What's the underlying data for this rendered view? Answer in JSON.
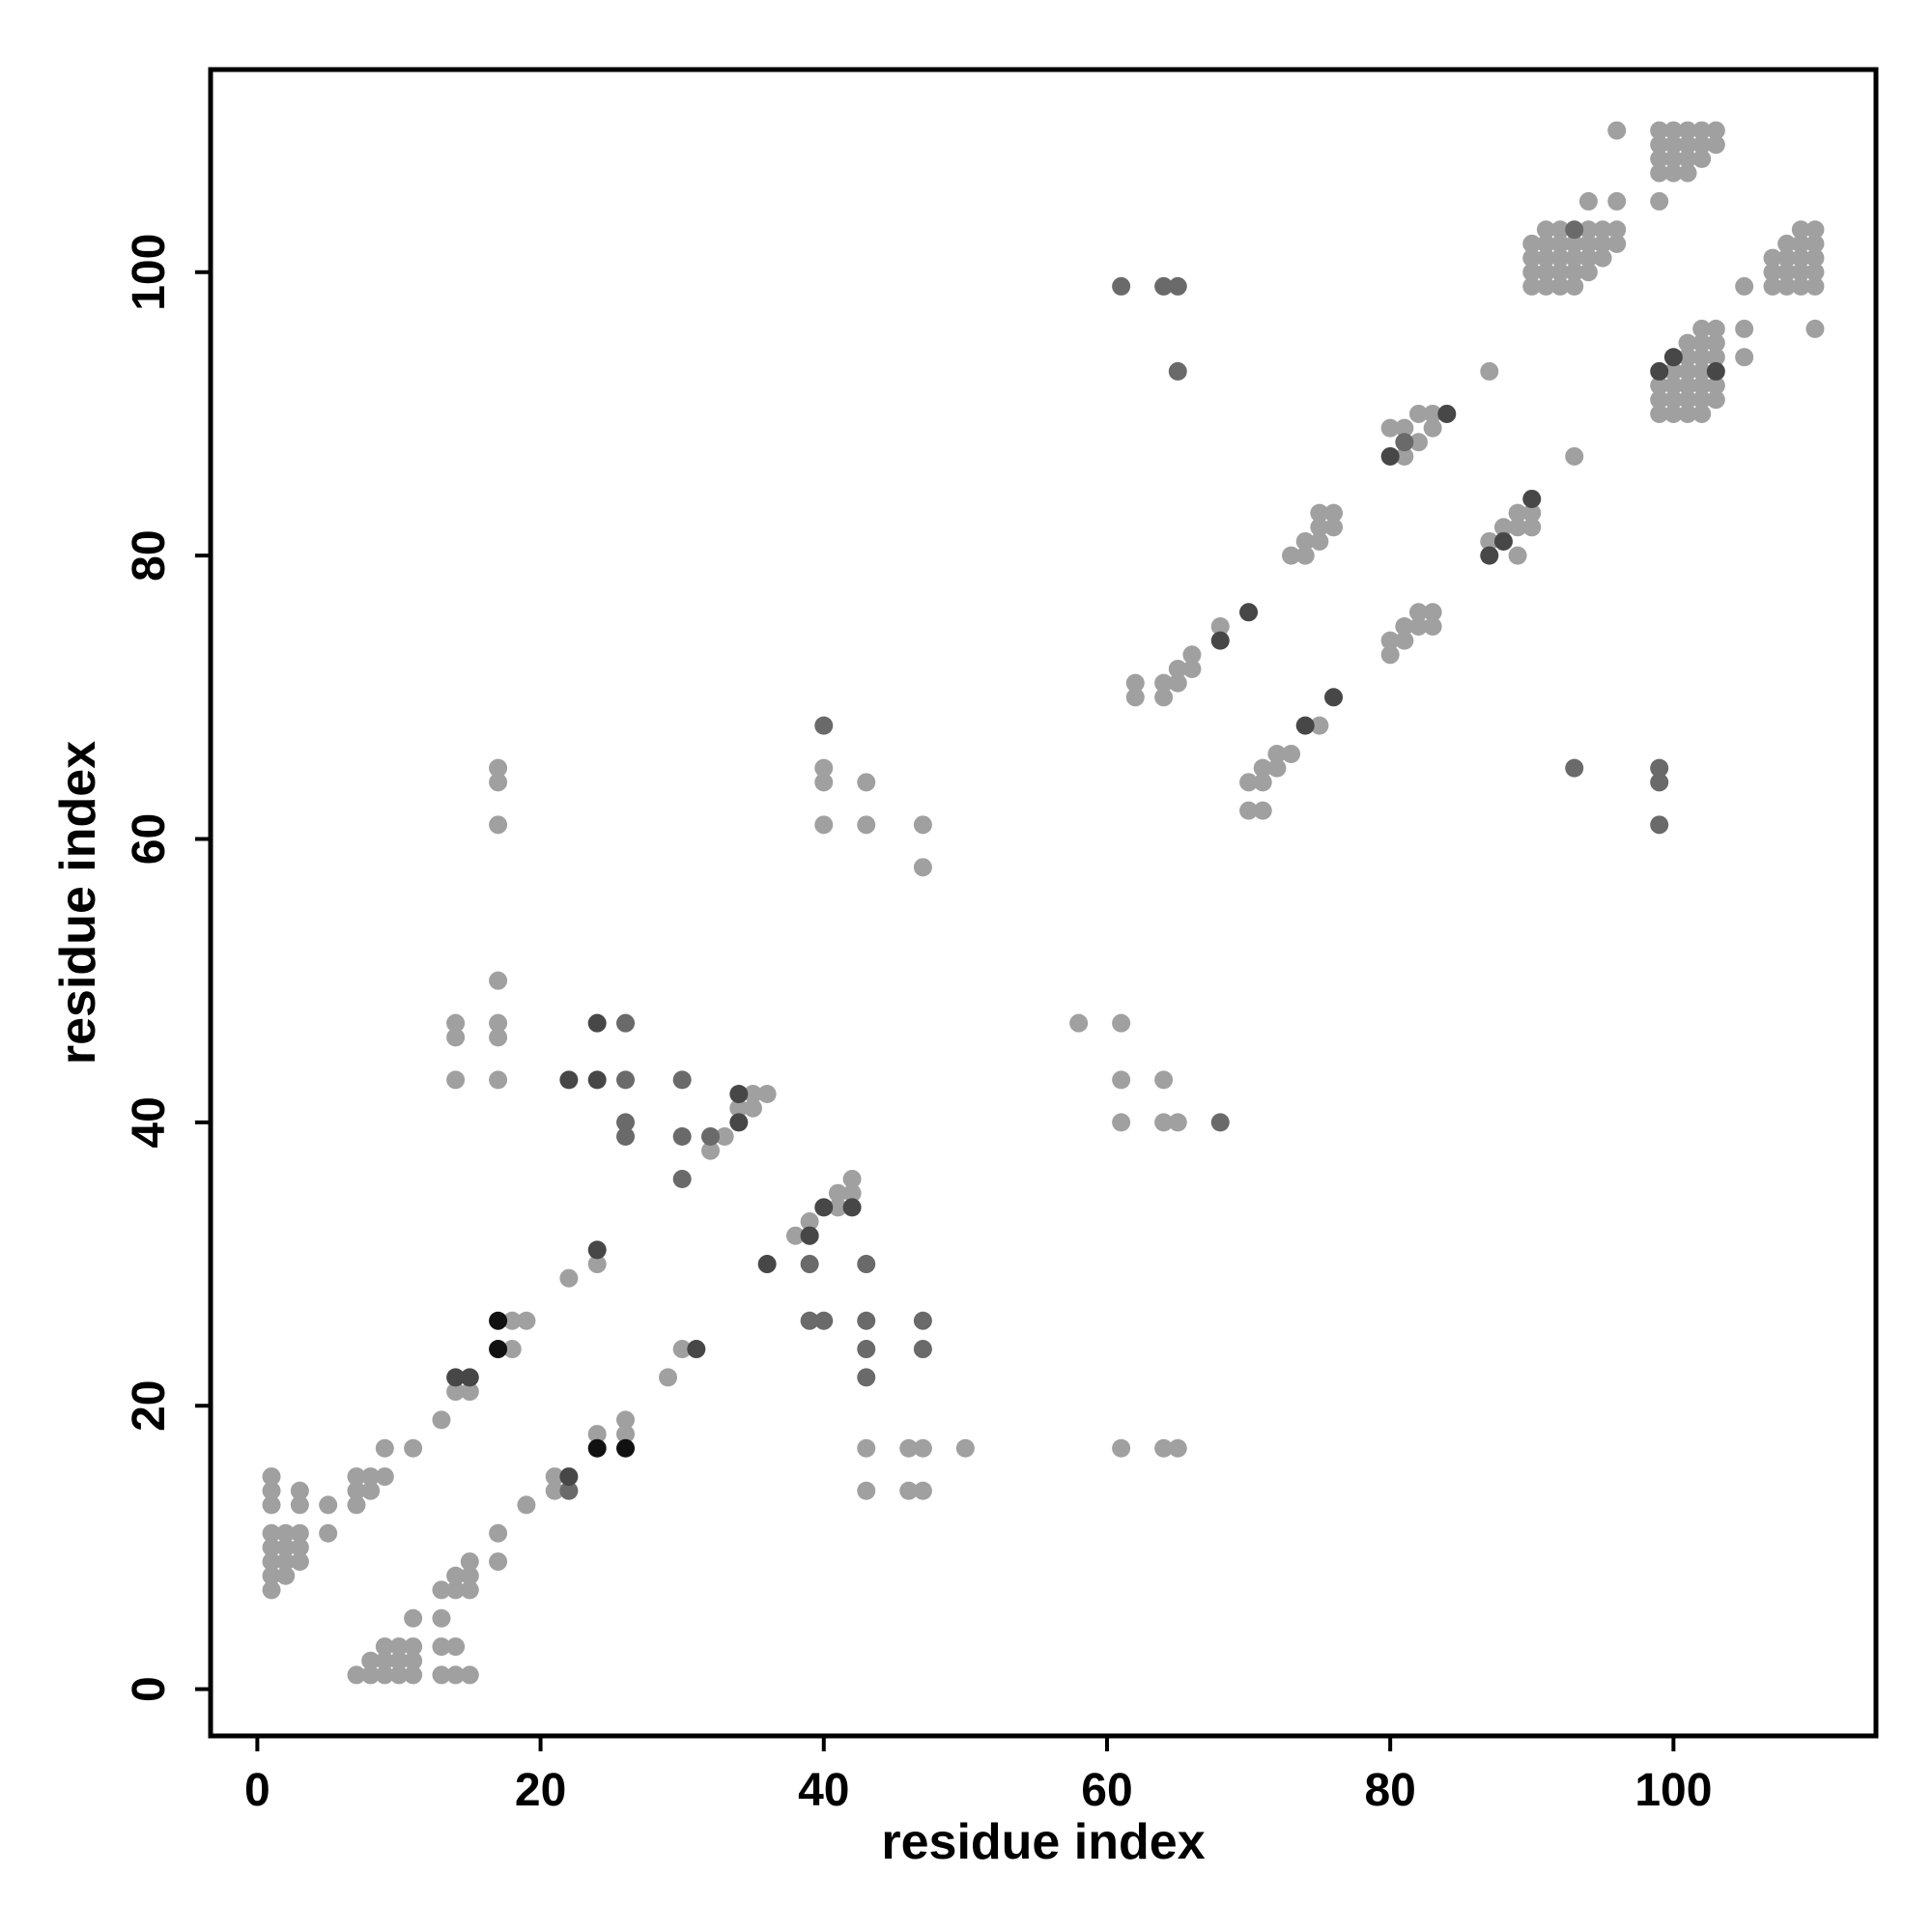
{
  "chart_data": {
    "type": "scatter",
    "title": "",
    "xlabel": "residue index",
    "ylabel": "residue index",
    "xlim": [
      -3.3,
      114.3
    ],
    "ylim": [
      -3.3,
      114.3
    ],
    "xticks": [
      0,
      20,
      40,
      60,
      80,
      100
    ],
    "yticks": [
      0,
      20,
      40,
      60,
      80,
      100
    ],
    "grid": false,
    "legend": "none",
    "colors": {
      "light": "#a0a0a0",
      "medium": "#6a6a6a",
      "dark": "#474747",
      "black": "#111111"
    },
    "series": [
      {
        "shade": "light",
        "points": [
          [
            1,
            7
          ],
          [
            1,
            8
          ],
          [
            1,
            9
          ],
          [
            1,
            10
          ],
          [
            1,
            11
          ],
          [
            1,
            13
          ],
          [
            1,
            14
          ],
          [
            1,
            15
          ],
          [
            2,
            8
          ],
          [
            2,
            9
          ],
          [
            2,
            10
          ],
          [
            2,
            11
          ],
          [
            3,
            9
          ],
          [
            3,
            10
          ],
          [
            3,
            11
          ],
          [
            3,
            13
          ],
          [
            3,
            14
          ],
          [
            5,
            11
          ],
          [
            5,
            13
          ],
          [
            7,
            1
          ],
          [
            7,
            13
          ],
          [
            7,
            14
          ],
          [
            7,
            15
          ],
          [
            8,
            1
          ],
          [
            8,
            2
          ],
          [
            8,
            14
          ],
          [
            8,
            15
          ],
          [
            9,
            1
          ],
          [
            9,
            2
          ],
          [
            9,
            3
          ],
          [
            9,
            15
          ],
          [
            9,
            17
          ],
          [
            10,
            1
          ],
          [
            10,
            2
          ],
          [
            10,
            3
          ],
          [
            11,
            1
          ],
          [
            11,
            2
          ],
          [
            11,
            3
          ],
          [
            11,
            5
          ],
          [
            11,
            17
          ],
          [
            13,
            1
          ],
          [
            13,
            3
          ],
          [
            13,
            5
          ],
          [
            13,
            7
          ],
          [
            13,
            19
          ],
          [
            14,
            1
          ],
          [
            14,
            3
          ],
          [
            14,
            7
          ],
          [
            14,
            8
          ],
          [
            14,
            21
          ],
          [
            14,
            43
          ],
          [
            14,
            46
          ],
          [
            14,
            47
          ],
          [
            15,
            1
          ],
          [
            15,
            7
          ],
          [
            15,
            8
          ],
          [
            15,
            9
          ],
          [
            15,
            21
          ],
          [
            17,
            9
          ],
          [
            17,
            11
          ],
          [
            17,
            43
          ],
          [
            17,
            46
          ],
          [
            17,
            47
          ],
          [
            17,
            50
          ],
          [
            17,
            61
          ],
          [
            17,
            64
          ],
          [
            17,
            65
          ],
          [
            18,
            24
          ],
          [
            18,
            26
          ],
          [
            19,
            13
          ],
          [
            19,
            26
          ],
          [
            21,
            14
          ],
          [
            21,
            15
          ],
          [
            22,
            29
          ],
          [
            24,
            18
          ],
          [
            24,
            30
          ],
          [
            26,
            18
          ],
          [
            26,
            19
          ],
          [
            29,
            22
          ],
          [
            30,
            24
          ],
          [
            32,
            38
          ],
          [
            33,
            39
          ],
          [
            34,
            41
          ],
          [
            35,
            41
          ],
          [
            35,
            42
          ],
          [
            36,
            42
          ],
          [
            38,
            32
          ],
          [
            39,
            33
          ],
          [
            40,
            61
          ],
          [
            40,
            64
          ],
          [
            40,
            65
          ],
          [
            41,
            34
          ],
          [
            41,
            35
          ],
          [
            42,
            35
          ],
          [
            42,
            36
          ],
          [
            43,
            14
          ],
          [
            43,
            17
          ],
          [
            43,
            61
          ],
          [
            43,
            64
          ],
          [
            46,
            14
          ],
          [
            46,
            17
          ],
          [
            47,
            14
          ],
          [
            47,
            17
          ],
          [
            47,
            58
          ],
          [
            47,
            61
          ],
          [
            50,
            17
          ],
          [
            58,
            47
          ],
          [
            61,
            17
          ],
          [
            61,
            40
          ],
          [
            61,
            43
          ],
          [
            61,
            47
          ],
          [
            62,
            70
          ],
          [
            62,
            71
          ],
          [
            64,
            17
          ],
          [
            64,
            40
          ],
          [
            64,
            43
          ],
          [
            64,
            70
          ],
          [
            64,
            71
          ],
          [
            65,
            17
          ],
          [
            65,
            40
          ],
          [
            65,
            71
          ],
          [
            65,
            72
          ],
          [
            66,
            72
          ],
          [
            66,
            73
          ],
          [
            68,
            75
          ],
          [
            70,
            62
          ],
          [
            70,
            64
          ],
          [
            71,
            62
          ],
          [
            71,
            64
          ],
          [
            71,
            65
          ],
          [
            72,
            65
          ],
          [
            72,
            66
          ],
          [
            73,
            66
          ],
          [
            73,
            80
          ],
          [
            74,
            80
          ],
          [
            74,
            81
          ],
          [
            75,
            68
          ],
          [
            75,
            81
          ],
          [
            75,
            82
          ],
          [
            76,
            82
          ],
          [
            76,
            83
          ],
          [
            75,
            83
          ],
          [
            80,
            73
          ],
          [
            80,
            74
          ],
          [
            80,
            89
          ],
          [
            81,
            74
          ],
          [
            81,
            75
          ],
          [
            81,
            87
          ],
          [
            81,
            89
          ],
          [
            82,
            75
          ],
          [
            82,
            76
          ],
          [
            82,
            88
          ],
          [
            82,
            90
          ],
          [
            83,
            75
          ],
          [
            83,
            76
          ],
          [
            83,
            89
          ],
          [
            83,
            90
          ],
          [
            87,
            81
          ],
          [
            87,
            93
          ],
          [
            88,
            82
          ],
          [
            89,
            80
          ],
          [
            89,
            82
          ],
          [
            89,
            83
          ],
          [
            90,
            82
          ],
          [
            90,
            83
          ],
          [
            90,
            99
          ],
          [
            90,
            100
          ],
          [
            90,
            101
          ],
          [
            90,
            102
          ],
          [
            91,
            99
          ],
          [
            91,
            100
          ],
          [
            91,
            101
          ],
          [
            91,
            102
          ],
          [
            91,
            103
          ],
          [
            92,
            99
          ],
          [
            92,
            100
          ],
          [
            92,
            101
          ],
          [
            92,
            102
          ],
          [
            92,
            103
          ],
          [
            93,
            87
          ],
          [
            93,
            99
          ],
          [
            93,
            100
          ],
          [
            93,
            101
          ],
          [
            93,
            102
          ],
          [
            94,
            100
          ],
          [
            94,
            101
          ],
          [
            94,
            102
          ],
          [
            94,
            103
          ],
          [
            94,
            105
          ],
          [
            95,
            101
          ],
          [
            95,
            102
          ],
          [
            95,
            103
          ],
          [
            96,
            102
          ],
          [
            96,
            103
          ],
          [
            96,
            105
          ],
          [
            96,
            110
          ],
          [
            99,
            90
          ],
          [
            99,
            91
          ],
          [
            99,
            92
          ],
          [
            99,
            105
          ],
          [
            99,
            107
          ],
          [
            99,
            108
          ],
          [
            99,
            109
          ],
          [
            99,
            110
          ],
          [
            100,
            90
          ],
          [
            100,
            91
          ],
          [
            100,
            92
          ],
          [
            100,
            93
          ],
          [
            100,
            107
          ],
          [
            100,
            108
          ],
          [
            100,
            109
          ],
          [
            100,
            110
          ],
          [
            101,
            90
          ],
          [
            101,
            91
          ],
          [
            101,
            92
          ],
          [
            101,
            93
          ],
          [
            101,
            94
          ],
          [
            101,
            95
          ],
          [
            101,
            107
          ],
          [
            101,
            108
          ],
          [
            101,
            109
          ],
          [
            101,
            110
          ],
          [
            102,
            90
          ],
          [
            102,
            91
          ],
          [
            102,
            92
          ],
          [
            102,
            93
          ],
          [
            102,
            94
          ],
          [
            102,
            95
          ],
          [
            102,
            96
          ],
          [
            102,
            108
          ],
          [
            102,
            109
          ],
          [
            102,
            110
          ],
          [
            103,
            91
          ],
          [
            103,
            92
          ],
          [
            103,
            94
          ],
          [
            103,
            95
          ],
          [
            103,
            96
          ],
          [
            103,
            109
          ],
          [
            103,
            110
          ],
          [
            105,
            94
          ],
          [
            105,
            96
          ],
          [
            105,
            99
          ],
          [
            107,
            99
          ],
          [
            107,
            100
          ],
          [
            107,
            101
          ],
          [
            108,
            99
          ],
          [
            108,
            100
          ],
          [
            108,
            101
          ],
          [
            108,
            102
          ],
          [
            109,
            99
          ],
          [
            109,
            100
          ],
          [
            109,
            101
          ],
          [
            109,
            102
          ],
          [
            109,
            103
          ],
          [
            110,
            96
          ],
          [
            110,
            99
          ],
          [
            110,
            100
          ],
          [
            110,
            101
          ],
          [
            110,
            102
          ],
          [
            110,
            103
          ]
        ]
      },
      {
        "shade": "medium",
        "points": [
          [
            22,
            14
          ],
          [
            26,
            39
          ],
          [
            26,
            40
          ],
          [
            26,
            43
          ],
          [
            26,
            47
          ],
          [
            30,
            36
          ],
          [
            30,
            39
          ],
          [
            30,
            43
          ],
          [
            32,
            39
          ],
          [
            39,
            26
          ],
          [
            39,
            30
          ],
          [
            39,
            32
          ],
          [
            40,
            26
          ],
          [
            40,
            68
          ],
          [
            43,
            22
          ],
          [
            43,
            24
          ],
          [
            43,
            26
          ],
          [
            43,
            30
          ],
          [
            47,
            24
          ],
          [
            47,
            26
          ],
          [
            61,
            99
          ],
          [
            64,
            99
          ],
          [
            65,
            93
          ],
          [
            65,
            99
          ],
          [
            68,
            40
          ],
          [
            81,
            88
          ],
          [
            93,
            65
          ],
          [
            93,
            103
          ],
          [
            99,
            61
          ],
          [
            99,
            64
          ],
          [
            99,
            65
          ]
        ]
      },
      {
        "shade": "dark",
        "points": [
          [
            14,
            22
          ],
          [
            15,
            22
          ],
          [
            22,
            15
          ],
          [
            22,
            43
          ],
          [
            24,
            31
          ],
          [
            24,
            43
          ],
          [
            24,
            47
          ],
          [
            31,
            24
          ],
          [
            34,
            40
          ],
          [
            34,
            42
          ],
          [
            36,
            30
          ],
          [
            39,
            32
          ],
          [
            40,
            34
          ],
          [
            42,
            34
          ],
          [
            68,
            74
          ],
          [
            70,
            76
          ],
          [
            74,
            68
          ],
          [
            76,
            70
          ],
          [
            80,
            87
          ],
          [
            84,
            90
          ],
          [
            87,
            80
          ],
          [
            88,
            81
          ],
          [
            90,
            84
          ],
          [
            99,
            93
          ],
          [
            100,
            94
          ],
          [
            103,
            93
          ]
        ]
      },
      {
        "shade": "black",
        "points": [
          [
            17,
            24
          ],
          [
            17,
            26
          ],
          [
            24,
            17
          ],
          [
            26,
            17
          ]
        ]
      }
    ]
  }
}
